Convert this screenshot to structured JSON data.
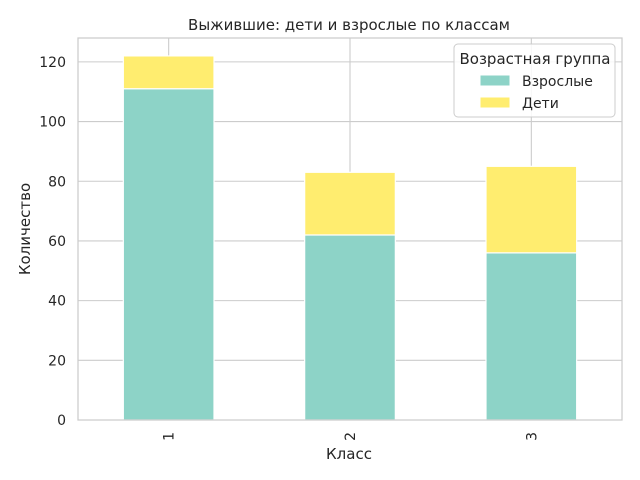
{
  "chart_data": {
    "type": "bar",
    "stacked": true,
    "title": "Выжившие: дети и взрослые по классам",
    "xlabel": "Класс",
    "ylabel": "Количество",
    "categories": [
      "1",
      "2",
      "3"
    ],
    "series": [
      {
        "name": "Взрослые",
        "values": [
          111,
          62,
          56
        ],
        "color": "#8dd3c7"
      },
      {
        "name": "Дети",
        "values": [
          11,
          21,
          29
        ],
        "color": "#ffed6f"
      }
    ],
    "ylim": [
      0,
      128
    ],
    "yticks": [
      0,
      20,
      40,
      60,
      80,
      100,
      120
    ],
    "grid": true,
    "legend": {
      "title": "Возрастная группа",
      "placement": "top-right"
    }
  }
}
